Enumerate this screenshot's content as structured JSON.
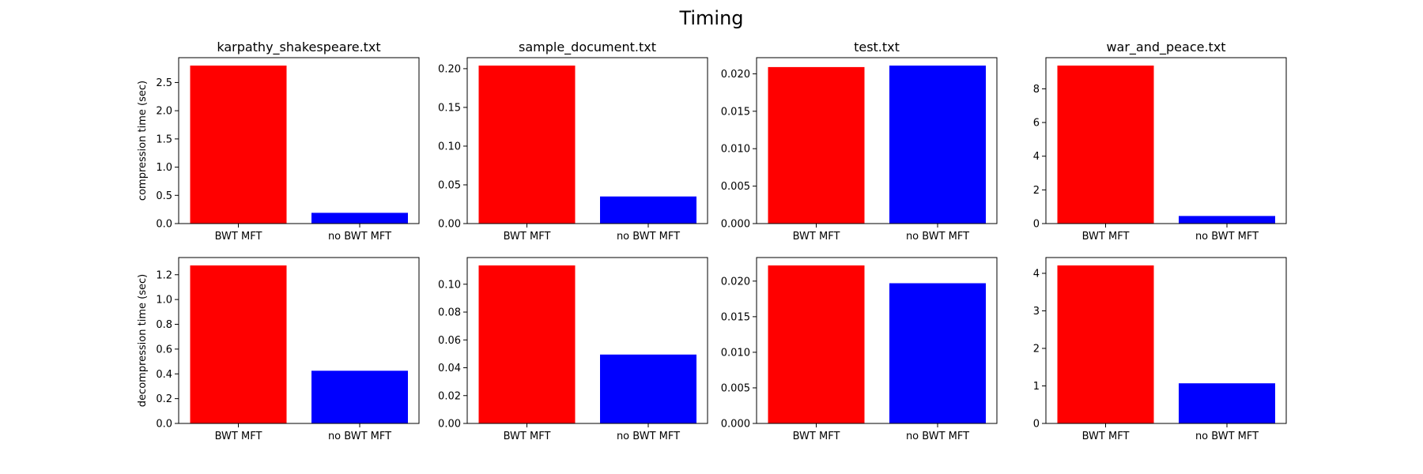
{
  "figure": {
    "title": "Timing"
  },
  "chart_data": [
    {
      "type": "bar",
      "title": "karpathy_shakespeare.txt",
      "ylabel": "compression time (sec)",
      "categories": [
        "BWT MFT",
        "no BWT MFT"
      ],
      "values": [
        2.8,
        0.19
      ],
      "colors": [
        "#ff0000",
        "#0000ff"
      ],
      "ylim": [
        0,
        2.94
      ],
      "yticks": [
        0.0,
        0.5,
        1.0,
        1.5,
        2.0,
        2.5
      ],
      "tick_decimals": 1
    },
    {
      "type": "bar",
      "title": "sample_document.txt",
      "ylabel": "",
      "categories": [
        "BWT MFT",
        "no BWT MFT"
      ],
      "values": [
        0.204,
        0.035
      ],
      "colors": [
        "#ff0000",
        "#0000ff"
      ],
      "ylim": [
        0,
        0.2142
      ],
      "yticks": [
        0.0,
        0.05,
        0.1,
        0.15,
        0.2
      ],
      "tick_decimals": 2
    },
    {
      "type": "bar",
      "title": "test.txt",
      "ylabel": "",
      "categories": [
        "BWT MFT",
        "no BWT MFT"
      ],
      "values": [
        0.0209,
        0.0211
      ],
      "colors": [
        "#ff0000",
        "#0000ff"
      ],
      "ylim": [
        0,
        0.022155
      ],
      "yticks": [
        0.0,
        0.005,
        0.01,
        0.015,
        0.02
      ],
      "tick_decimals": 3
    },
    {
      "type": "bar",
      "title": "war_and_peace.txt",
      "ylabel": "",
      "categories": [
        "BWT MFT",
        "no BWT MFT"
      ],
      "values": [
        9.38,
        0.45
      ],
      "colors": [
        "#ff0000",
        "#0000ff"
      ],
      "ylim": [
        0,
        9.849
      ],
      "yticks": [
        0,
        2,
        4,
        6,
        8
      ],
      "tick_decimals": 0
    },
    {
      "type": "bar",
      "title": "",
      "ylabel": "decompression time (sec)",
      "categories": [
        "BWT MFT",
        "no BWT MFT"
      ],
      "values": [
        1.275,
        0.425
      ],
      "colors": [
        "#ff0000",
        "#0000ff"
      ],
      "ylim": [
        0,
        1.33875
      ],
      "yticks": [
        0.0,
        0.2,
        0.4,
        0.6,
        0.8,
        1.0,
        1.2
      ],
      "tick_decimals": 1
    },
    {
      "type": "bar",
      "title": "",
      "ylabel": "",
      "categories": [
        "BWT MFT",
        "no BWT MFT"
      ],
      "values": [
        0.1135,
        0.0495
      ],
      "colors": [
        "#ff0000",
        "#0000ff"
      ],
      "ylim": [
        0,
        0.119175
      ],
      "yticks": [
        0.0,
        0.02,
        0.04,
        0.06,
        0.08,
        0.1
      ],
      "tick_decimals": 2
    },
    {
      "type": "bar",
      "title": "",
      "ylabel": "",
      "categories": [
        "BWT MFT",
        "no BWT MFT"
      ],
      "values": [
        0.0222,
        0.0197
      ],
      "colors": [
        "#ff0000",
        "#0000ff"
      ],
      "ylim": [
        0,
        0.02331
      ],
      "yticks": [
        0.0,
        0.005,
        0.01,
        0.015,
        0.02
      ],
      "tick_decimals": 3
    },
    {
      "type": "bar",
      "title": "",
      "ylabel": "",
      "categories": [
        "BWT MFT",
        "no BWT MFT"
      ],
      "values": [
        4.21,
        1.07
      ],
      "colors": [
        "#ff0000",
        "#0000ff"
      ],
      "ylim": [
        0,
        4.4205
      ],
      "yticks": [
        0,
        1,
        2,
        3,
        4
      ],
      "tick_decimals": 0
    }
  ]
}
